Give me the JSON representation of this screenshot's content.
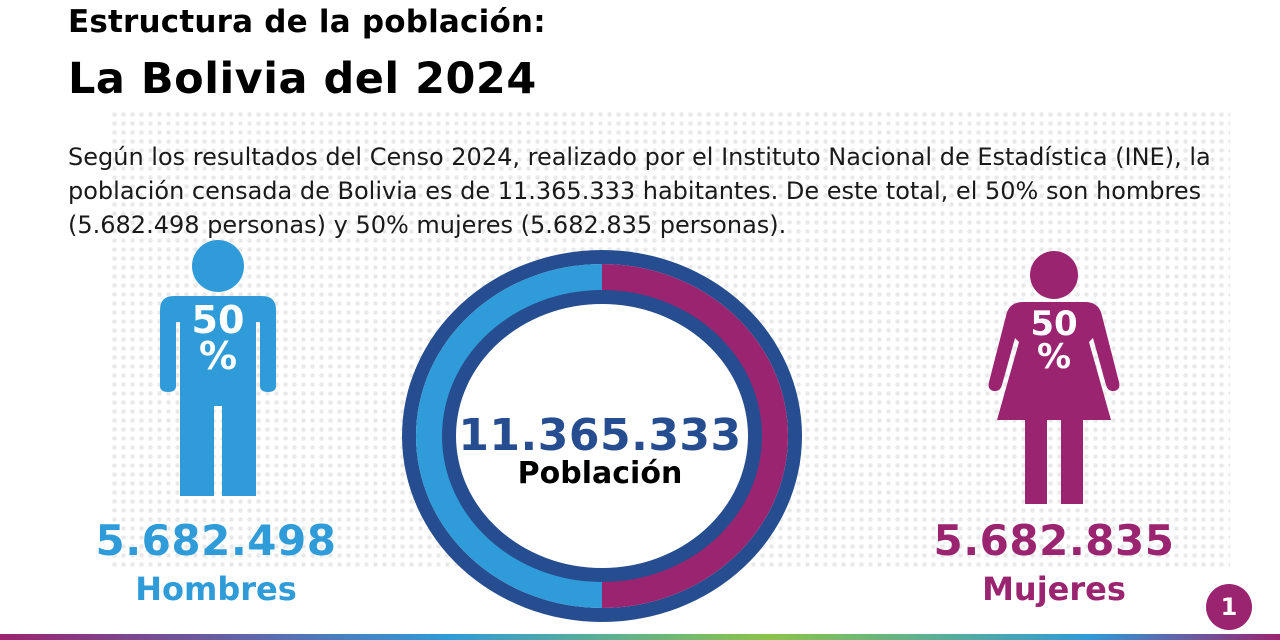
{
  "header": {
    "title": "Estructura de la población:",
    "subtitle": "La Bolivia del 2024"
  },
  "description": "Según los resultados del Censo 2024, realizado por el Instituto Nacional de Estadística (INE), la población censada de Bolivia es de 11.365.333 habitantes. De este total, el 50% son hombres (5.682.498 personas) y 50% mujeres (5.682.835 personas).",
  "men": {
    "percent_number": "50",
    "percent_sign": "%",
    "count": "5.682.498",
    "label": "Hombres",
    "icon": "man-icon",
    "color": "#2f9bd8"
  },
  "women": {
    "percent_number": "50",
    "percent_sign": "%",
    "count": "5.682.835",
    "label": "Mujeres",
    "icon": "woman-icon",
    "color": "#9a2470"
  },
  "total": {
    "value": "11.365.333",
    "label": "Población",
    "ring_color": "#254d8f"
  },
  "page_number": "1"
}
